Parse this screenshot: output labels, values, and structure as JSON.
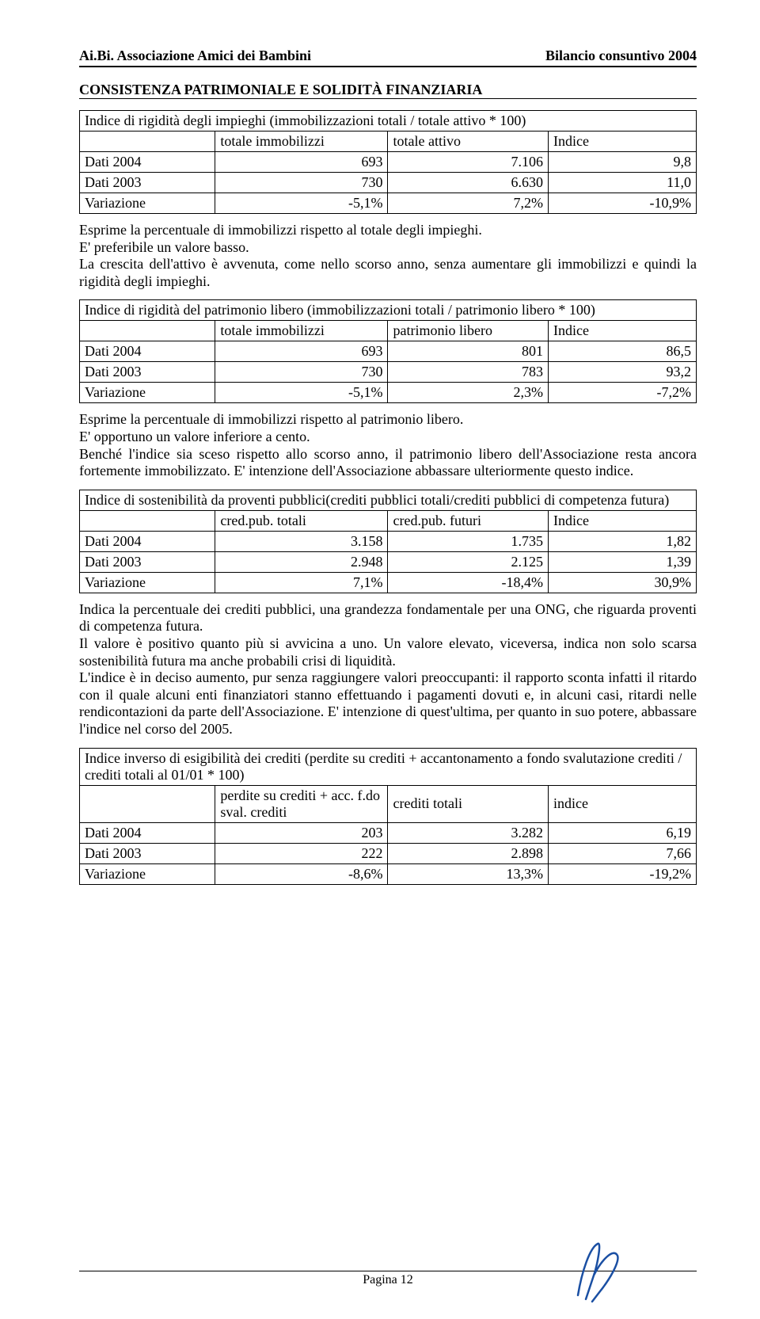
{
  "header": {
    "left": "Ai.Bi. Associazione Amici dei Bambini",
    "right": "Bilancio consuntivo 2004"
  },
  "section_title": "CONSISTENZA PATRIMONIALE E SOLIDITÀ FINANZIARIA",
  "t1": {
    "title": "Indice di rigidità degli impieghi (immobilizzazioni totali / totale attivo * 100)",
    "h1": "totale immobilizzi",
    "h2": "totale attivo",
    "h3": "Indice",
    "r1l": "Dati 2004",
    "r1c1": "693",
    "r1c2": "7.106",
    "r1c3": "9,8",
    "r2l": "Dati 2003",
    "r2c1": "730",
    "r2c2": "6.630",
    "r2c3": "11,0",
    "r3l": "Variazione",
    "r3c1": "-5,1%",
    "r3c2": "7,2%",
    "r3c3": "-10,9%"
  },
  "p1": "Esprime la percentuale di immobilizzi rispetto al totale degli impieghi.\nE' preferibile un valore basso.\nLa crescita dell'attivo è avvenuta, come nello scorso anno, senza aumentare gli immobilizzi e quindi la rigidità degli impieghi.",
  "t2": {
    "title": "Indice di rigidità del patrimonio libero (immobilizzazioni totali / patrimonio libero * 100)",
    "h1": "totale immobilizzi",
    "h2": "patrimonio libero",
    "h3": "Indice",
    "r1l": "Dati 2004",
    "r1c1": "693",
    "r1c2": "801",
    "r1c3": "86,5",
    "r2l": "Dati 2003",
    "r2c1": "730",
    "r2c2": "783",
    "r2c3": "93,2",
    "r3l": "Variazione",
    "r3c1": "-5,1%",
    "r3c2": "2,3%",
    "r3c3": "-7,2%"
  },
  "p2": "Esprime la percentuale di immobilizzi rispetto al patrimonio libero.\nE' opportuno un valore inferiore a cento.\nBenché l'indice sia sceso rispetto allo scorso anno, il patrimonio libero dell'Associazione resta ancora fortemente immobilizzato. E' intenzione dell'Associazione abbassare ulteriormente questo indice.",
  "t3": {
    "title": "Indice di sostenibilità da proventi pubblici(crediti pubblici totali/crediti pubblici di competenza futura)",
    "h1": "cred.pub. totali",
    "h2": "cred.pub. futuri",
    "h3": "Indice",
    "r1l": "Dati 2004",
    "r1c1": "3.158",
    "r1c2": "1.735",
    "r1c3": "1,82",
    "r2l": "Dati 2003",
    "r2c1": "2.948",
    "r2c2": "2.125",
    "r2c3": "1,39",
    "r3l": "Variazione",
    "r3c1": "7,1%",
    "r3c2": "-18,4%",
    "r3c3": "30,9%"
  },
  "p3": "Indica la percentuale dei crediti pubblici, una grandezza fondamentale per una ONG, che riguarda proventi di competenza futura.\nIl valore è positivo quanto più si avvicina a uno. Un valore elevato, viceversa, indica non solo scarsa sostenibilità futura ma anche probabili crisi di liquidità.\nL'indice è in deciso aumento, pur senza raggiungere valori preoccupanti: il rapporto sconta infatti il ritardo con il quale alcuni enti finanziatori stanno effettuando i pagamenti dovuti e, in alcuni casi, ritardi nelle rendicontazioni da parte dell'Associazione. E' intenzione di quest'ultima, per quanto in suo potere, abbassare l'indice nel corso del 2005.",
  "t4": {
    "title": "Indice inverso di esigibilità dei crediti (perdite su crediti + accantonamento a fondo svalutazione crediti / crediti totali al 01/01 * 100)",
    "h1": "perdite su crediti + acc. f.do sval. crediti",
    "h2": "crediti totali",
    "h3": "indice",
    "r1l": "Dati 2004",
    "r1c1": "203",
    "r1c2": "3.282",
    "r1c3": "6,19",
    "r2l": "Dati 2003",
    "r2c1": "222",
    "r2c2": "2.898",
    "r2c3": "7,66",
    "r3l": "Variazione",
    "r3c1": "-8,6%",
    "r3c2": "13,3%",
    "r3c3": "-19,2%"
  },
  "footer": "Pagina 12",
  "widths": {
    "c0": "22%",
    "c1": "28%",
    "c2": "26%",
    "c3": "24%"
  },
  "sig_color": "#1a4fa3"
}
